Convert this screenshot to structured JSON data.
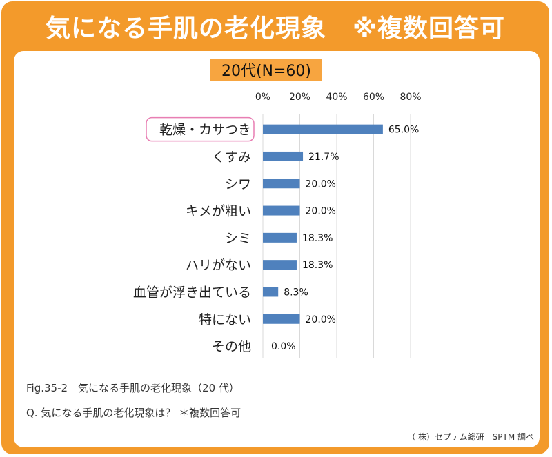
{
  "header": {
    "title": "気になる手肌の老化現象",
    "note": "※複数回答可"
  },
  "chart_data": {
    "type": "bar",
    "orientation": "horizontal",
    "title": "20代(N=60)",
    "categories": [
      "乾燥・カサつき",
      "くすみ",
      "シワ",
      "キメが粗い",
      "シミ",
      "ハリがない",
      "血管が浮き出ている",
      "特にない",
      "その他"
    ],
    "values": [
      65.0,
      21.7,
      20.0,
      20.0,
      18.3,
      18.3,
      8.3,
      20.0,
      0.0
    ],
    "data_labels": [
      "65.0%",
      "21.7%",
      "20.0%",
      "20.0%",
      "18.3%",
      "18.3%",
      "8.3%",
      "20.0%",
      "0.0%"
    ],
    "x_ticks": [
      "0%",
      "20%",
      "40%",
      "60%",
      "80%"
    ],
    "xlim": [
      0,
      80
    ],
    "x_axis_position": "top",
    "grid": true,
    "highlighted_category": "乾燥・カサつき",
    "bar_color": "#4f81bd",
    "highlight_border_color": "#e87fb3"
  },
  "footer": {
    "figure_caption": "Fig.35-2　気になる手肌の老化現象（20 代）",
    "question": "Q. 気になる手肌の老化現象は？ ＊複数回答可",
    "source": "（ 株）セプテム総研　SPTM 調べ"
  },
  "colors": {
    "frame": "#f39a2b",
    "label_box": "#f7a540"
  }
}
